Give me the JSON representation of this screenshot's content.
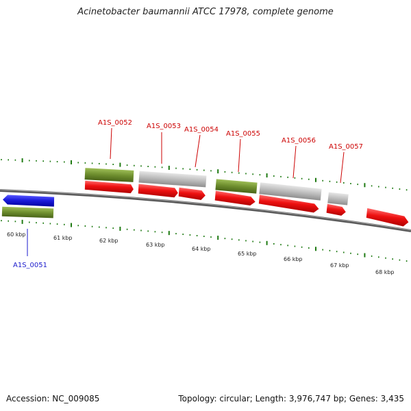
{
  "title": "Acinetobacter baumannii ATCC 17978, complete genome",
  "footer": {
    "accession": "Accession: NC_009085",
    "stats": "Topology: circular; Length: 3,976,747 bp; Genes: 3,435"
  },
  "colors": {
    "backbone": "#6b6b6b",
    "ticks": "#1e7a12",
    "cds_forward": "#ee1111",
    "cds_reverse": "#1d1ddd",
    "gene_green": "#6f8f2f",
    "gene_gray": "#bcbcbc",
    "label_forward": "#cc0000",
    "label_reverse": "#1a1acc"
  },
  "kbp_labels": [
    "60 kbp",
    "61 kbp",
    "62 kbp",
    "63 kbp",
    "64 kbp",
    "65 kbp",
    "66 kbp",
    "67 kbp",
    "68 kbp"
  ],
  "gene_labels": [
    {
      "text": "A1S_0051",
      "strand": "reverse"
    },
    {
      "text": "A1S_0052",
      "strand": "forward"
    },
    {
      "text": "A1S_0053",
      "strand": "forward"
    },
    {
      "text": "A1S_0054",
      "strand": "forward"
    },
    {
      "text": "A1S_0055",
      "strand": "forward"
    },
    {
      "text": "A1S_0056",
      "strand": "forward"
    },
    {
      "text": "A1S_0057",
      "strand": "forward"
    }
  ]
}
